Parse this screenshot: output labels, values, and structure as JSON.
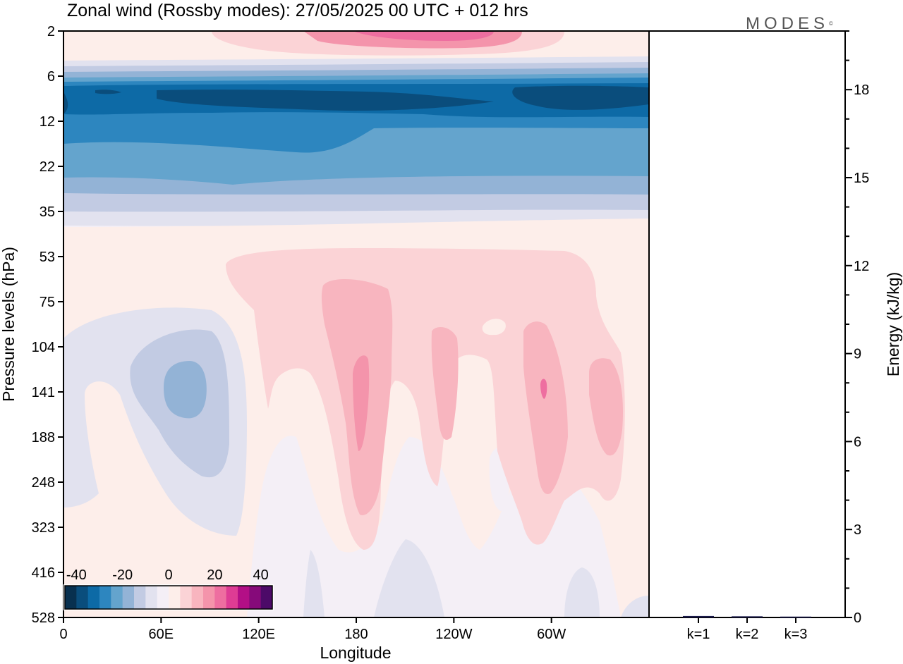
{
  "title": "Zonal wind (Rossby modes):  27/05/2025  00 UTC  + 012 hrs",
  "logo": "MODES",
  "logo_mark": "©",
  "colors": {
    "neg5": "#08304f",
    "neg4": "#0a4d7c",
    "neg3": "#0d6aa6",
    "neg2": "#2d86bf",
    "neg1": "#64a4cd",
    "neg0c": "#93b3d6",
    "neg0b": "#c2cbe3",
    "neg0a": "#e2e2ef",
    "zero": "#f4eff6",
    "pos0a": "#fdeeea",
    "pos0b": "#fbd3d6",
    "pos1": "#f8b5bf",
    "pos2": "#f494ab",
    "pos3": "#ee6ea0",
    "pos4": "#de3c94",
    "pos5": "#b30f86",
    "pos6": "#860a7a",
    "pos7": "#4c0a68"
  },
  "chart_data": [
    {
      "type": "heatmap",
      "title": "Zonal wind (Rossby modes):  27/05/2025  00 UTC  + 012 hrs",
      "xlabel": "Longitude",
      "ylabel": "Pressure levels (hPa)",
      "x_ticks": [
        "0",
        "60E",
        "120E",
        "180",
        "120W",
        "60W"
      ],
      "y_ticks": [
        "2",
        "6",
        "12",
        "22",
        "35",
        "53",
        "75",
        "104",
        "141",
        "188",
        "248",
        "323",
        "416",
        "528"
      ],
      "y_scale": "pressure levels",
      "colorbar": {
        "labels": [
          "-40",
          "-20",
          "0",
          "20",
          "40"
        ],
        "min": -45,
        "max": 45,
        "step": 5,
        "colors": [
          "#08304f",
          "#0a4d7c",
          "#0d6aa6",
          "#2d86bf",
          "#64a4cd",
          "#93b3d6",
          "#c2cbe3",
          "#e2e2ef",
          "#f4eff6",
          "#fdeeea",
          "#fbd3d6",
          "#f8b5bf",
          "#f494ab",
          "#ee6ea0",
          "#de3c94",
          "#b30f86",
          "#860a7a",
          "#4c0a68"
        ]
      }
    },
    {
      "type": "bar",
      "ylabel": "Energy (kJ/kg)",
      "categories": [
        "k=1",
        "k=2",
        "k=3"
      ],
      "values": [
        0.05,
        0.04,
        0.03
      ],
      "y_ticks": [
        "0",
        "3",
        "6",
        "9",
        "12",
        "15",
        "18"
      ],
      "ylim": [
        0,
        20
      ],
      "bar_color": "#1a1a4a"
    }
  ]
}
